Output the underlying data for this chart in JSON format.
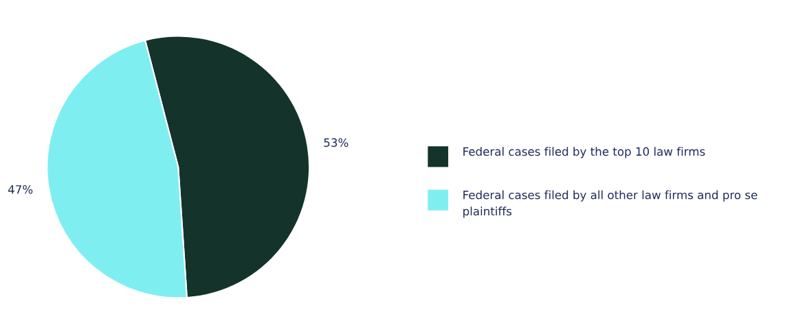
{
  "chart_data": {
    "type": "pie",
    "categories": [
      "Federal cases filed by the top 10 law firms",
      "Federal cases filed by all other law firms and pro se plaintiffs"
    ],
    "values": [
      53,
      47
    ],
    "colors": [
      "#13332b",
      "#7feef1"
    ],
    "value_labels": [
      "53%",
      "47%"
    ],
    "legend": "right"
  }
}
